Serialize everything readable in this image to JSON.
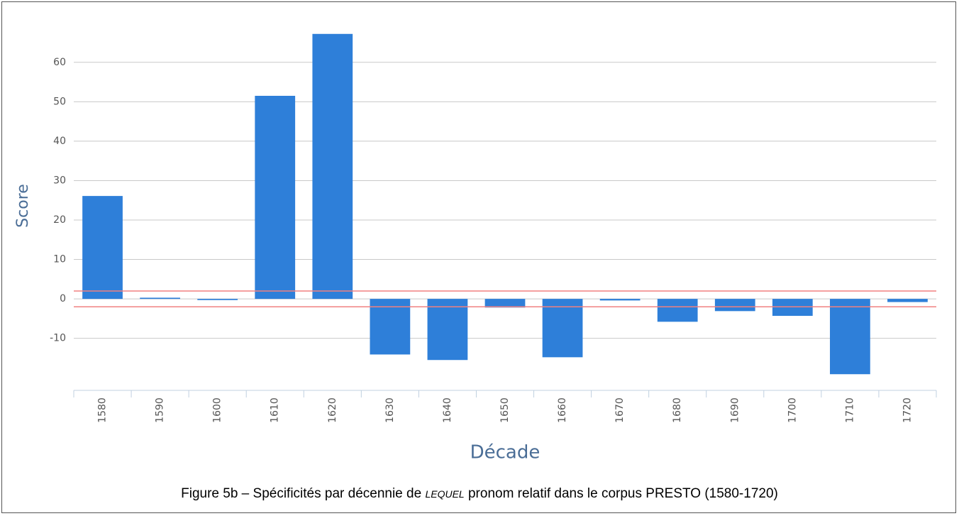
{
  "chart_data": {
    "type": "bar",
    "categories": [
      "1580",
      "1590",
      "1600",
      "1610",
      "1620",
      "1630",
      "1640",
      "1650",
      "1660",
      "1670",
      "1680",
      "1690",
      "1700",
      "1710",
      "1720"
    ],
    "values": [
      26.1,
      0.3,
      -0.3,
      51.5,
      67.2,
      -14.1,
      -15.5,
      -2.2,
      -14.8,
      -0.4,
      -5.8,
      -3.1,
      -4.3,
      -19.1,
      -0.8
    ],
    "color": "#2e7fd9",
    "ylim": [
      -23.2,
      69.5
    ],
    "yticks": [
      -10,
      0,
      10,
      20,
      30,
      40,
      50,
      60
    ],
    "grid": true,
    "threshold_lines": [
      2,
      -2
    ],
    "threshold_color": "#f08080",
    "ylabel": "Score",
    "xlabel": "Décade"
  },
  "caption": {
    "prefix": "Figure 5b – Spécificités par décennie de",
    "emphasis": "LEQUEL",
    "suffix": "pronom relatif dans le corpus PRESTO (1580-1720)"
  }
}
